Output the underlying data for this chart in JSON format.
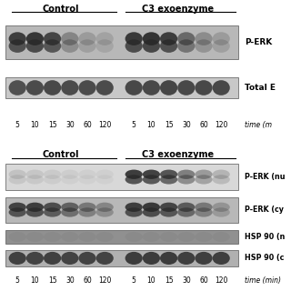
{
  "bg_color": "#ffffff",
  "panel1": {
    "title_control": "Control",
    "title_c3": "C3 exoenzyme",
    "time_labels": [
      "5",
      "10",
      "15",
      "30",
      "60",
      "120",
      "5",
      "10",
      "15",
      "30",
      "60",
      "120"
    ],
    "time_label_bottom": "time (m",
    "label_perk": "P-ERK",
    "label_totalerk": "Total E",
    "blot_bg": "#c8c8c8",
    "blot_bg2": "#d0d0d0",
    "band_dark": "#303030",
    "band_medium": "#505050",
    "band_light": "#888888",
    "band_faint": "#aaaaaa"
  },
  "panel2": {
    "title_control": "Control",
    "title_c3": "C3 exoenzyme",
    "time_labels": [
      "5",
      "10",
      "15",
      "30",
      "60",
      "120",
      "5",
      "10",
      "15",
      "30",
      "60",
      "120"
    ],
    "time_label_bottom": "time (min)",
    "label_perk_n": "P-ERK (nu",
    "label_perk_cy": "P-ERK (cy",
    "label_hsp90_n": "HSP 90 (n",
    "label_hsp90_c": "HSP 90 (c"
  }
}
